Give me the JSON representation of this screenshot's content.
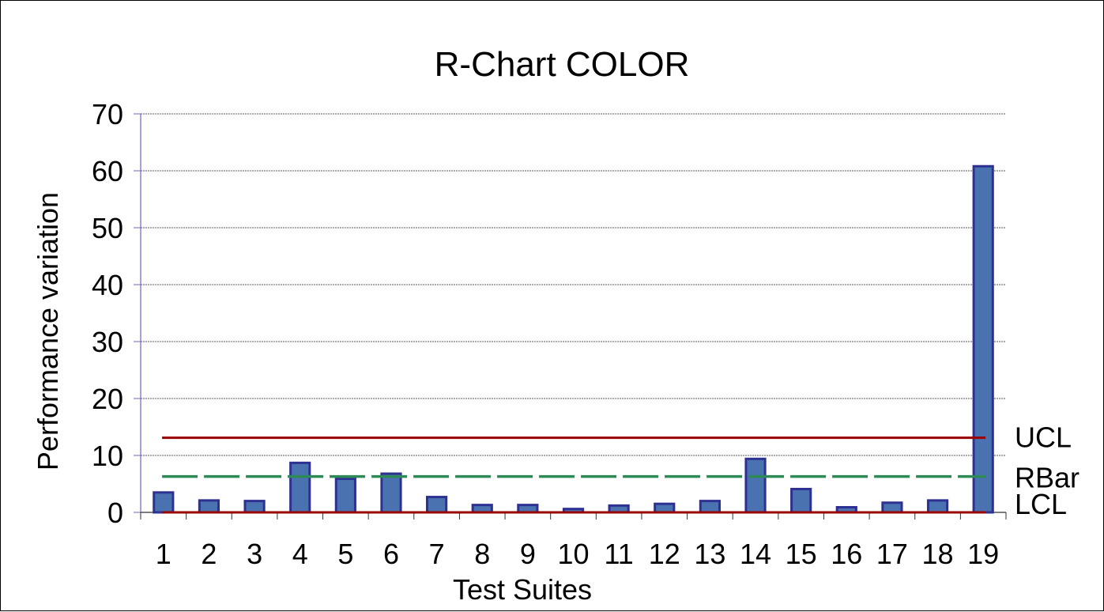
{
  "chart_data": {
    "type": "bar",
    "title": "R-Chart COLOR",
    "xlabel": "Test Suites",
    "ylabel": "Performance variation",
    "ylim": [
      0,
      70
    ],
    "yticks": [
      0,
      10,
      20,
      30,
      40,
      50,
      60,
      70
    ],
    "grid": true,
    "categories": [
      "1",
      "2",
      "3",
      "4",
      "5",
      "6",
      "7",
      "8",
      "9",
      "10",
      "11",
      "12",
      "13",
      "14",
      "15",
      "16",
      "17",
      "18",
      "19"
    ],
    "values": [
      3.5,
      2.1,
      2.0,
      8.7,
      5.9,
      6.8,
      2.7,
      1.3,
      1.3,
      0.6,
      1.2,
      1.5,
      2.0,
      9.4,
      4.1,
      0.9,
      1.7,
      2.1,
      60.8
    ],
    "reference_lines": [
      {
        "name": "UCL",
        "value": 13.1,
        "color": "#990000",
        "style": "solid"
      },
      {
        "name": "RBar",
        "value": 6.3,
        "color": "#2e8b57",
        "style": "dotted"
      },
      {
        "name": "LCL",
        "value": 0,
        "color": "#990000",
        "style": "solid"
      }
    ],
    "bar_fill": "#4a72b0",
    "bar_stroke": "#2e3192",
    "axis_color": "#6666cc",
    "grid_color": "#555555"
  }
}
